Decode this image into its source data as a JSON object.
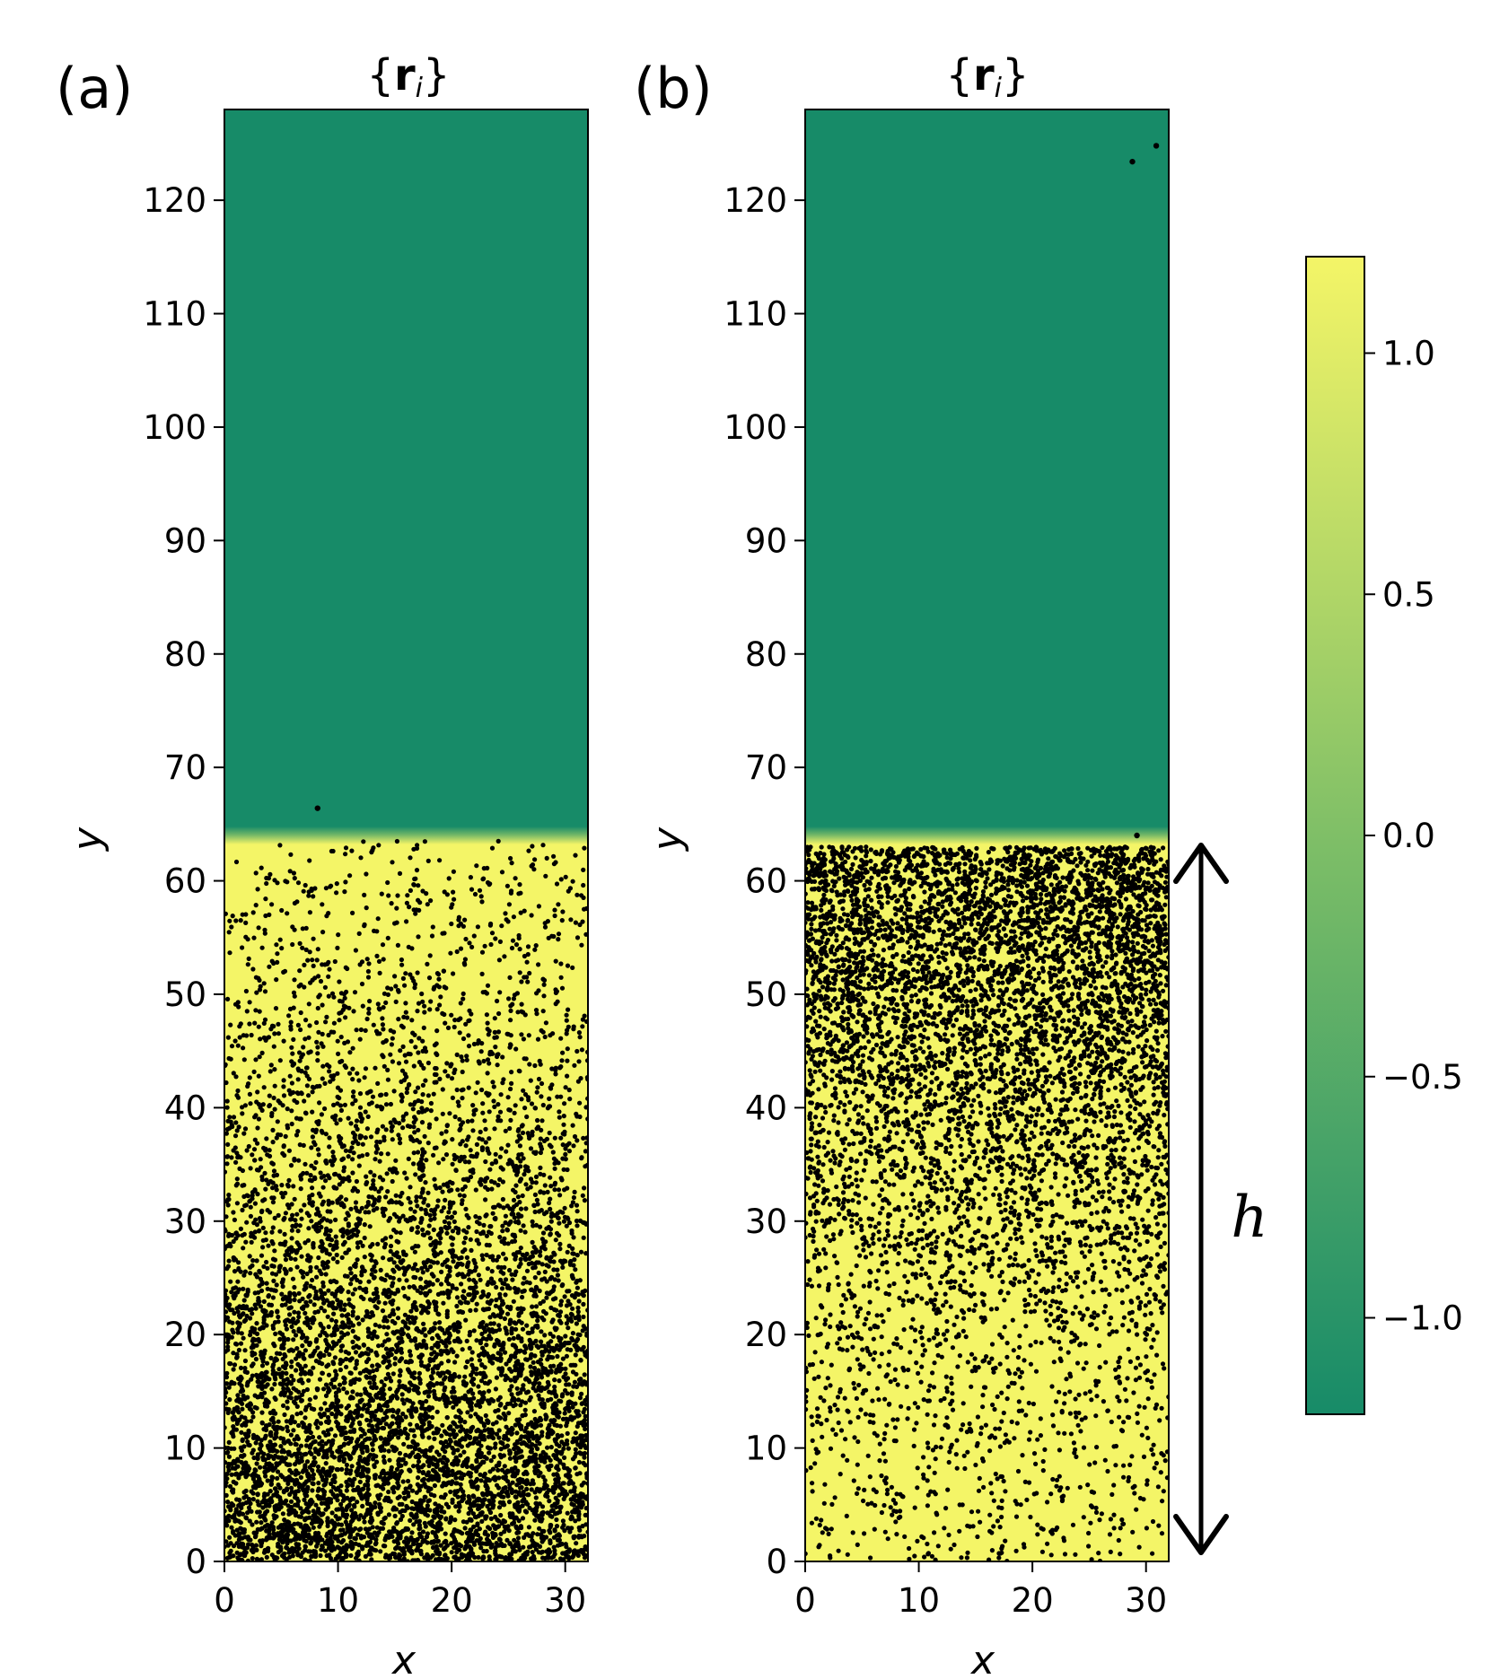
{
  "chart_data": {
    "type": "scatter",
    "panels": [
      {
        "label": "(a)",
        "title": "{r_i}",
        "title_parts": {
          "open": "{",
          "bold": "r",
          "sub": "i",
          "close": "}"
        },
        "xlabel": "x",
        "ylabel": "y",
        "xlim": [
          0,
          32
        ],
        "ylim": [
          0,
          128
        ],
        "xticks": [
          0,
          10,
          20,
          30
        ],
        "yticks": [
          0,
          10,
          20,
          30,
          40,
          50,
          60,
          70,
          80,
          90,
          100,
          110,
          120
        ],
        "background_field": {
          "interface_y": 64,
          "below_value": 1.0,
          "above_value": -1.0
        },
        "particles": {
          "distribution": "density decreasing with height",
          "density_profile": [
            [
              0,
              1.0
            ],
            [
              10,
              0.85
            ],
            [
              20,
              0.62
            ],
            [
              30,
              0.42
            ],
            [
              40,
              0.28
            ],
            [
              50,
              0.17
            ],
            [
              60,
              0.11
            ],
            [
              63.5,
              0.09
            ]
          ],
          "stray_points": [
            [
              8.2,
              66.4
            ]
          ]
        }
      },
      {
        "label": "(b)",
        "title": "{r_i}",
        "title_parts": {
          "open": "{",
          "bold": "r",
          "sub": "i",
          "close": "}"
        },
        "xlabel": "x",
        "ylabel": "y",
        "xlim": [
          0,
          32
        ],
        "ylim": [
          0,
          128
        ],
        "xticks": [
          0,
          10,
          20,
          30
        ],
        "yticks": [
          0,
          10,
          20,
          30,
          40,
          50,
          60,
          70,
          80,
          90,
          100,
          110,
          120
        ],
        "background_field": {
          "interface_y": 64,
          "below_value": 1.0,
          "above_value": -1.0
        },
        "particles": {
          "distribution": "density increasing with height",
          "density_profile": [
            [
              0,
              0.1
            ],
            [
              10,
              0.13
            ],
            [
              20,
              0.2
            ],
            [
              30,
              0.3
            ],
            [
              40,
              0.5
            ],
            [
              50,
              0.72
            ],
            [
              60,
              0.9
            ],
            [
              63,
              1.0
            ]
          ],
          "stray_points": [
            [
              28.8,
              123.4
            ],
            [
              30.9,
              124.8
            ],
            [
              29.2,
              64.0
            ]
          ]
        },
        "annotation": {
          "text": "h",
          "type": "double-arrow",
          "y_from": 0,
          "y_to": 64
        }
      }
    ],
    "colorbar": {
      "ticks": [
        1.0,
        0.5,
        0.0,
        -0.5,
        -1.0
      ],
      "tick_labels": [
        "1.0",
        "0.5",
        "0.0",
        "−0.5",
        "−1.0"
      ],
      "range": [
        -1.2,
        1.2
      ],
      "colors": {
        "low": "#178b68",
        "high": "#f4f567"
      }
    }
  }
}
